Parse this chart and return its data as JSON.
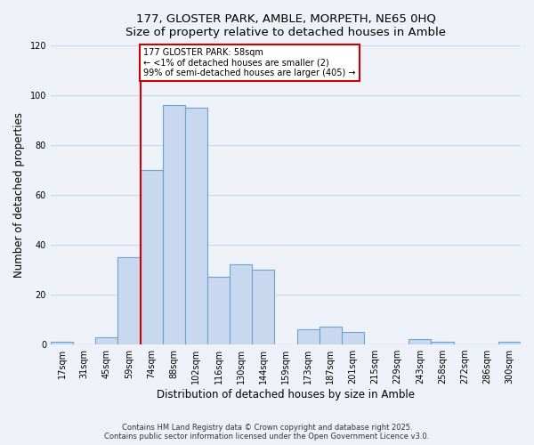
{
  "title_line1": "177, GLOSTER PARK, AMBLE, MORPETH, NE65 0HQ",
  "title_line2": "Size of property relative to detached houses in Amble",
  "xlabel": "Distribution of detached houses by size in Amble",
  "ylabel": "Number of detached properties",
  "bin_labels": [
    "17sqm",
    "31sqm",
    "45sqm",
    "59sqm",
    "74sqm",
    "88sqm",
    "102sqm",
    "116sqm",
    "130sqm",
    "144sqm",
    "159sqm",
    "173sqm",
    "187sqm",
    "201sqm",
    "215sqm",
    "229sqm",
    "243sqm",
    "258sqm",
    "272sqm",
    "286sqm",
    "300sqm"
  ],
  "bar_heights": [
    1,
    0,
    3,
    35,
    70,
    96,
    95,
    27,
    32,
    30,
    0,
    6,
    7,
    5,
    0,
    0,
    2,
    1,
    0,
    0,
    1
  ],
  "bar_color": "#c8d8ee",
  "bar_edgecolor": "#6ba3d0",
  "property_bar_index": 3,
  "property_line_color": "#cc0000",
  "annotation_text": "177 GLOSTER PARK: 58sqm\n← <1% of detached houses are smaller (2)\n99% of semi-detached houses are larger (405) →",
  "annotation_box_edgecolor": "#cc0000",
  "ylim": [
    0,
    120
  ],
  "yticks": [
    0,
    20,
    40,
    60,
    80,
    100,
    120
  ],
  "grid_color": "#c8d8ee",
  "background_color": "#eef2f8",
  "footer_line1": "Contains HM Land Registry data © Crown copyright and database right 2025.",
  "footer_line2": "Contains public sector information licensed under the Open Government Licence v3.0."
}
